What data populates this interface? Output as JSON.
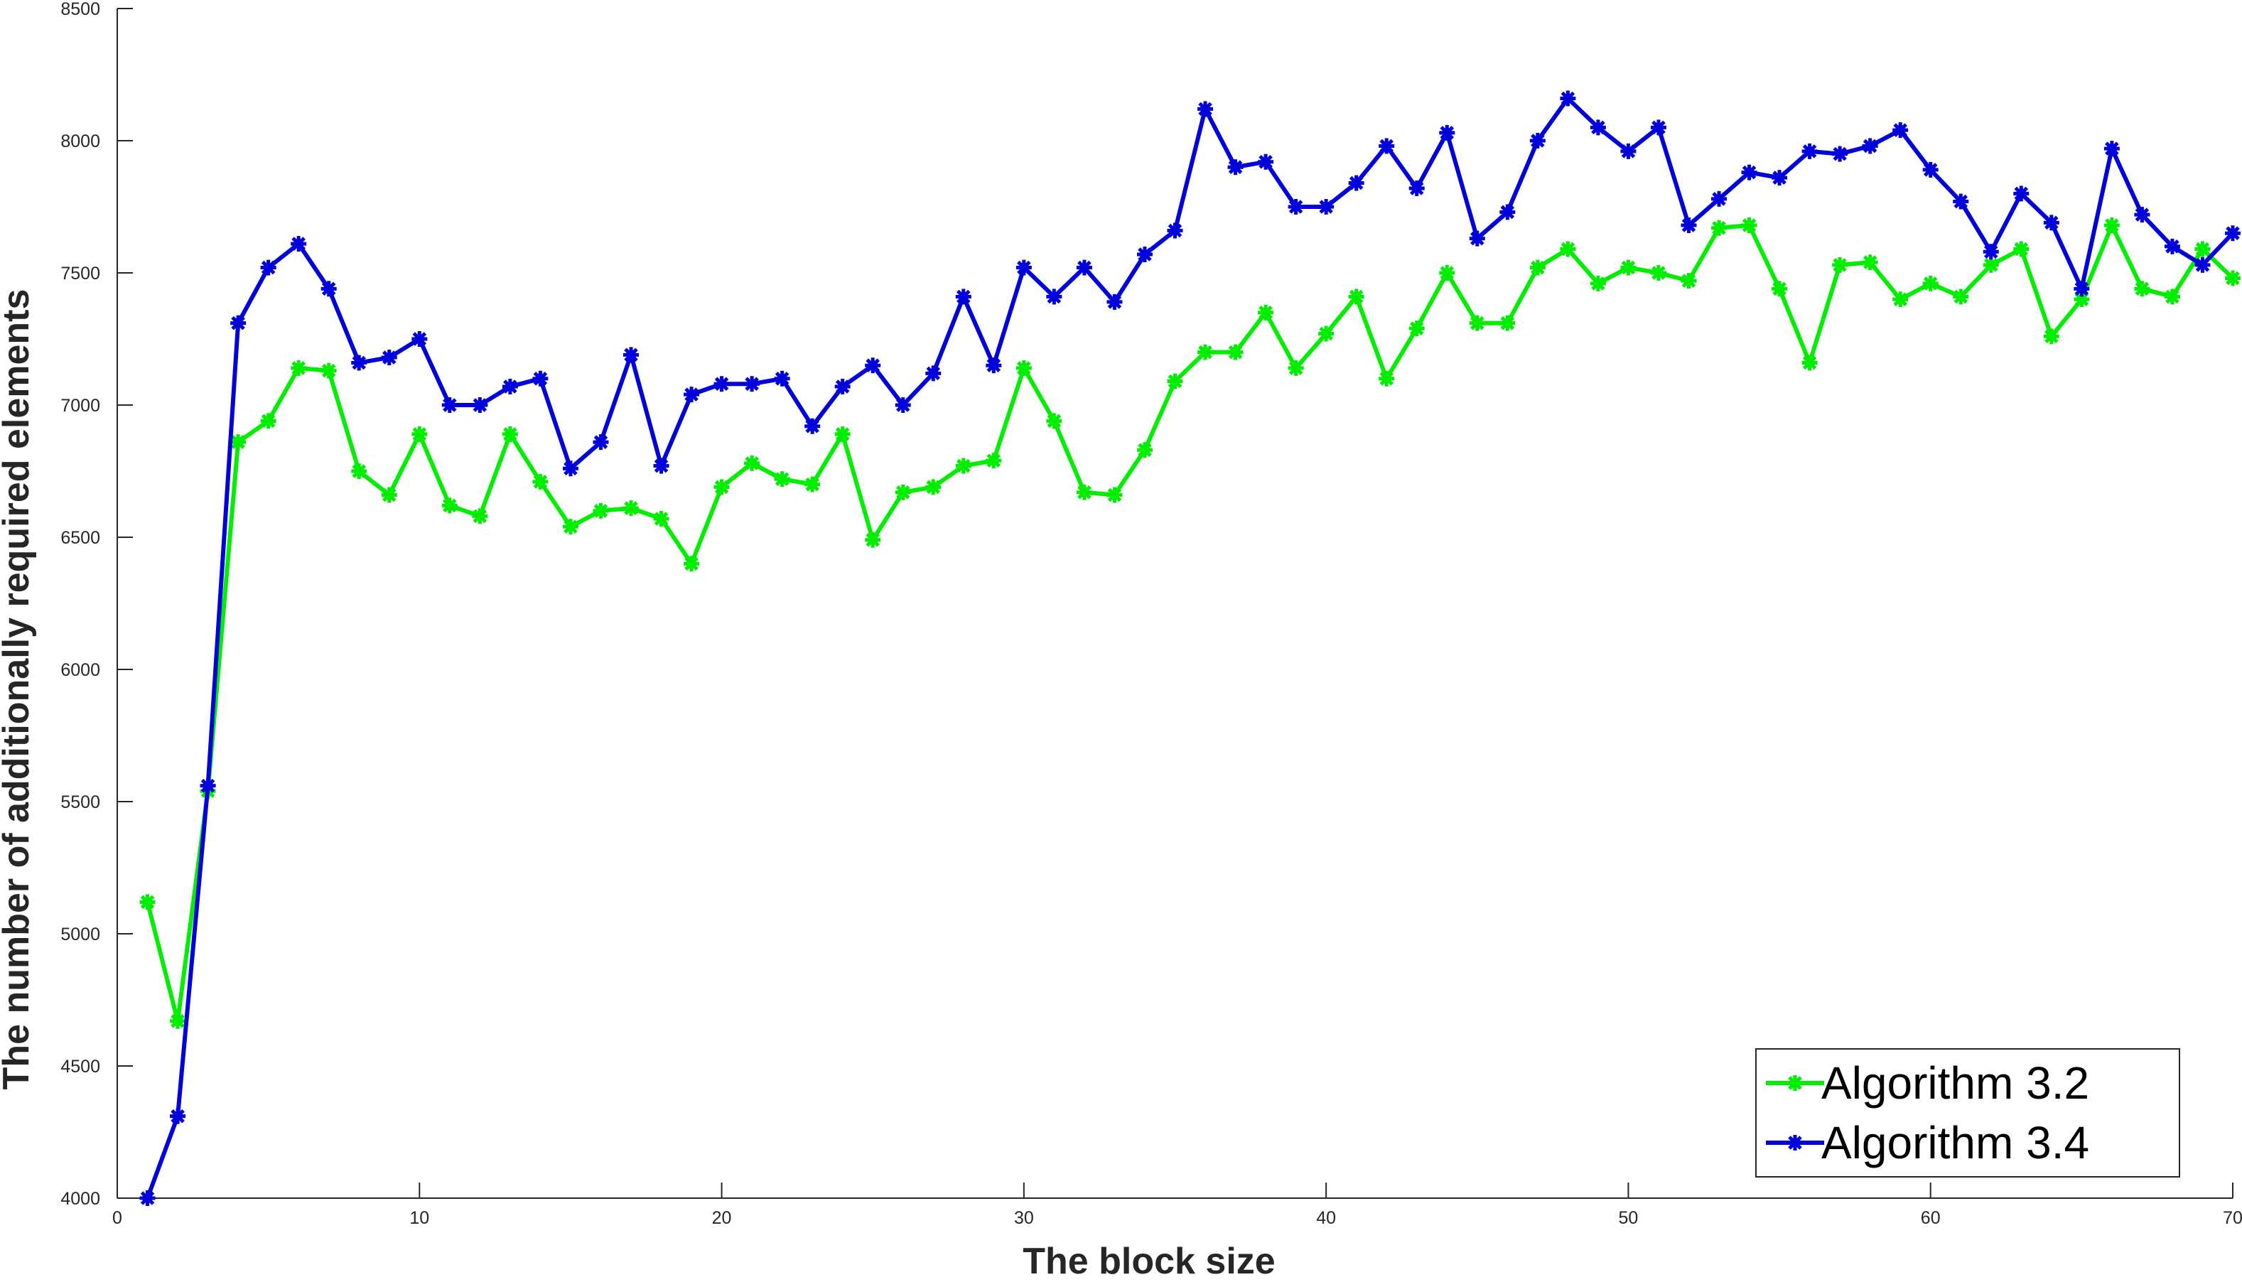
{
  "chart_data": {
    "type": "line",
    "xlabel": "The block size",
    "ylabel": "The number of additionally required elements",
    "xlim": [
      0,
      70
    ],
    "ylim": [
      4000,
      8500
    ],
    "xticks": [
      0,
      10,
      20,
      30,
      40,
      50,
      60,
      70
    ],
    "yticks": [
      4000,
      4500,
      5000,
      5500,
      6000,
      6500,
      7000,
      7500,
      8000,
      8500
    ],
    "grid": false,
    "legend_position": "bottom-right",
    "x": [
      1,
      2,
      3,
      4,
      5,
      6,
      7,
      8,
      9,
      10,
      11,
      12,
      13,
      14,
      15,
      16,
      17,
      18,
      19,
      20,
      21,
      22,
      23,
      24,
      25,
      26,
      27,
      28,
      29,
      30,
      31,
      32,
      33,
      34,
      35,
      36,
      37,
      38,
      39,
      40,
      41,
      42,
      43,
      44,
      45,
      46,
      47,
      48,
      49,
      50,
      51,
      52,
      53,
      54,
      55,
      56,
      57,
      58,
      59,
      60,
      61,
      62,
      63,
      64,
      65,
      66,
      67,
      68,
      69,
      70
    ],
    "series": [
      {
        "name": "Algorithm 3.2",
        "color": "#00ee00",
        "values": [
          5120,
          4670,
          5540,
          6860,
          6940,
          7140,
          7130,
          6750,
          6660,
          6890,
          6620,
          6580,
          6890,
          6710,
          6540,
          6600,
          6610,
          6570,
          6400,
          6690,
          6780,
          6720,
          6700,
          6890,
          6490,
          6670,
          6690,
          6770,
          6790,
          7140,
          6940,
          6670,
          6660,
          6830,
          7090,
          7200,
          7200,
          7350,
          7140,
          7270,
          7410,
          7100,
          7290,
          7500,
          7310,
          7310,
          7520,
          7590,
          7460,
          7520,
          7500,
          7470,
          7670,
          7680,
          7440,
          7160,
          7530,
          7540,
          7400,
          7460,
          7410,
          7530,
          7590,
          7260,
          7400,
          7680,
          7440,
          7410,
          7590,
          7480
        ]
      },
      {
        "name": "Algorithm 3.4",
        "color": "#0000dd",
        "values": [
          4000,
          4310,
          5560,
          7310,
          7520,
          7610,
          7440,
          7160,
          7180,
          7250,
          7000,
          7000,
          7070,
          7100,
          6760,
          6860,
          7190,
          6770,
          7040,
          7080,
          7080,
          7100,
          6920,
          7070,
          7150,
          7000,
          7120,
          7410,
          7150,
          7520,
          7410,
          7520,
          7390,
          7570,
          7660,
          8120,
          7900,
          7920,
          7750,
          7750,
          7840,
          7980,
          7820,
          8030,
          7630,
          7730,
          8000,
          8160,
          8050,
          7960,
          8050,
          7680,
          7780,
          7880,
          7860,
          7960,
          7950,
          7980,
          8040,
          7890,
          7770,
          7580,
          7800,
          7690,
          7440,
          7970,
          7720,
          7600,
          7530,
          7650
        ]
      }
    ]
  }
}
